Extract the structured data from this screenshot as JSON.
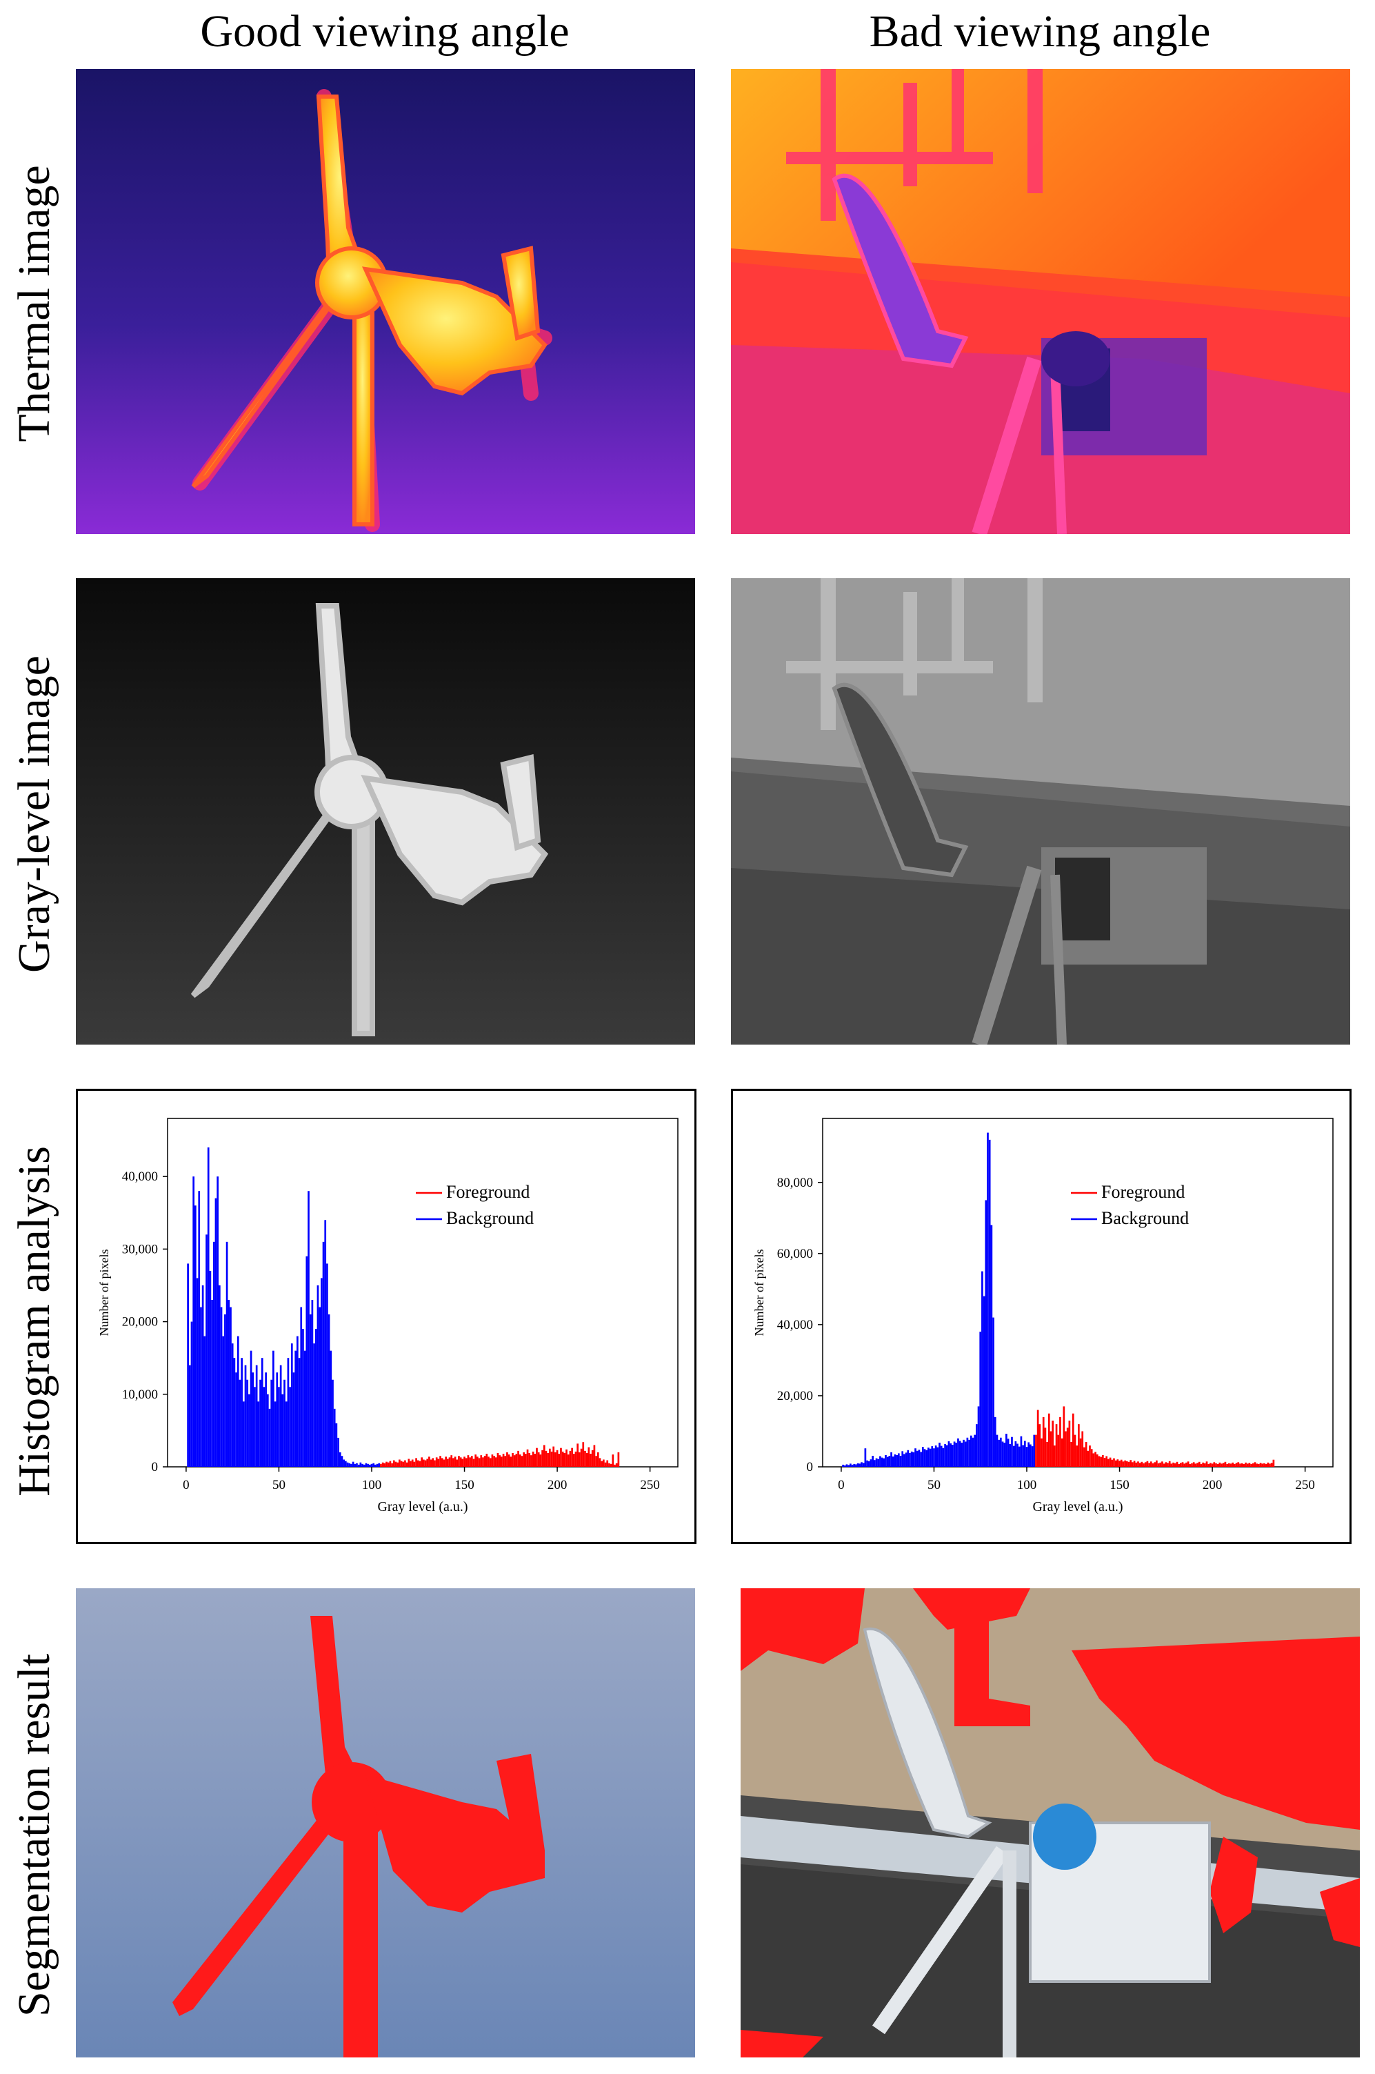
{
  "columns": {
    "good": "Good viewing angle",
    "bad": "Bad viewing angle"
  },
  "rows": {
    "thermal": "Thermal image",
    "gray": "Gray-level image",
    "histogram": "Histogram analysis",
    "segmentation": "Segmentation result"
  },
  "colors": {
    "foreground": "#ff0000",
    "background": "#0000ff",
    "thermal_bg": "#2a1a8a",
    "thermal_hot": "#ffd21a",
    "segment_red": "#ff1a1a",
    "sky": "#8aa0c4"
  },
  "chart_data": [
    {
      "type": "bar",
      "panel": "good",
      "xlabel": "Gray level (a.u.)",
      "ylabel": "Number of pixels",
      "xlim": [
        -10,
        265
      ],
      "ylim": [
        0,
        48000
      ],
      "xticks": [
        0,
        50,
        100,
        150,
        200,
        250
      ],
      "yticks": [
        0,
        10000,
        20000,
        30000,
        40000
      ],
      "ytick_labels": [
        "0",
        "10,000",
        "20,000",
        "30,000",
        "40,000"
      ],
      "legend": {
        "position": "top-right"
      },
      "series": [
        {
          "name": "Background",
          "color": "#0000ff",
          "x": [
            1,
            2,
            3,
            4,
            5,
            6,
            7,
            8,
            9,
            10,
            11,
            12,
            13,
            14,
            15,
            16,
            17,
            18,
            19,
            20,
            21,
            22,
            23,
            24,
            25,
            26,
            27,
            28,
            29,
            30,
            31,
            32,
            33,
            34,
            35,
            36,
            37,
            38,
            39,
            40,
            41,
            42,
            43,
            44,
            45,
            46,
            47,
            48,
            49,
            50,
            51,
            52,
            53,
            54,
            55,
            56,
            57,
            58,
            59,
            60,
            61,
            62,
            63,
            64,
            65,
            66,
            67,
            68,
            69,
            70,
            71,
            72,
            73,
            74,
            75,
            76,
            77,
            78,
            79,
            80,
            81,
            82,
            83,
            84,
            85,
            86,
            87,
            88,
            89,
            90,
            91,
            92,
            93,
            94,
            95,
            96,
            97,
            98,
            99,
            100,
            101,
            102,
            103,
            104
          ],
          "values": [
            28000,
            14000,
            20000,
            40000,
            36000,
            26000,
            38000,
            22000,
            25000,
            18000,
            32000,
            44000,
            27000,
            23000,
            31000,
            37000,
            40000,
            25000,
            22000,
            18000,
            21000,
            31000,
            23000,
            22000,
            17000,
            15000,
            13000,
            18000,
            12000,
            15000,
            9000,
            14000,
            12000,
            10000,
            16000,
            13000,
            11000,
            14000,
            9000,
            12000,
            15000,
            11000,
            13000,
            10000,
            8000,
            12000,
            16000,
            9000,
            13000,
            11000,
            14000,
            10000,
            12000,
            9000,
            15000,
            11000,
            17000,
            13000,
            16000,
            18000,
            15000,
            22000,
            19000,
            16000,
            29000,
            38000,
            21000,
            23000,
            17000,
            19000,
            25000,
            22000,
            26000,
            31000,
            34000,
            28000,
            21000,
            16000,
            12000,
            8000,
            6000,
            4000,
            2000,
            1500,
            1000,
            800,
            600,
            500,
            400,
            700,
            400,
            500,
            300,
            600,
            400,
            300,
            500,
            400,
            300,
            400,
            500,
            300,
            400,
            500
          ]
        },
        {
          "name": "Foreground",
          "color": "#ff0000",
          "x": [
            105,
            106,
            107,
            108,
            109,
            110,
            111,
            112,
            113,
            114,
            115,
            116,
            117,
            118,
            119,
            120,
            121,
            122,
            123,
            124,
            125,
            126,
            127,
            128,
            129,
            130,
            131,
            132,
            133,
            134,
            135,
            136,
            137,
            138,
            139,
            140,
            141,
            142,
            143,
            144,
            145,
            146,
            147,
            148,
            149,
            150,
            151,
            152,
            153,
            154,
            155,
            156,
            157,
            158,
            159,
            160,
            161,
            162,
            163,
            164,
            165,
            166,
            167,
            168,
            169,
            170,
            171,
            172,
            173,
            174,
            175,
            176,
            177,
            178,
            179,
            180,
            181,
            182,
            183,
            184,
            185,
            186,
            187,
            188,
            189,
            190,
            191,
            192,
            193,
            194,
            195,
            196,
            197,
            198,
            199,
            200,
            201,
            202,
            203,
            204,
            205,
            206,
            207,
            208,
            209,
            210,
            211,
            212,
            213,
            214,
            215,
            216,
            217,
            218,
            219,
            220,
            221,
            222,
            223,
            224,
            225,
            226,
            227,
            228,
            229,
            230,
            231,
            232,
            233
          ],
          "values": [
            400,
            600,
            500,
            700,
            600,
            800,
            500,
            900,
            700,
            600,
            1000,
            800,
            700,
            900,
            600,
            1100,
            800,
            1000,
            700,
            1200,
            900,
            800,
            1300,
            1000,
            900,
            1100,
            1400,
            1000,
            1200,
            900,
            1300,
            1100,
            1500,
            1200,
            1000,
            1400,
            1100,
            1300,
            1600,
            1200,
            1400,
            1000,
            1500,
            1300,
            1100,
            1400,
            1200,
            1600,
            1300,
            1500,
            1100,
            1700,
            1400,
            1200,
            1600,
            1300,
            1500,
            1800,
            1400,
            1200,
            1700,
            1500,
            1300,
            1900,
            1600,
            1400,
            1800,
            1500,
            2000,
            1700,
            1400,
            1900,
            1600,
            1800,
            2200,
            1700,
            1500,
            2000,
            1800,
            2400,
            1900,
            1600,
            2100,
            1800,
            2600,
            2000,
            1700,
            2300,
            3000,
            2200,
            1900,
            2500,
            2100,
            2800,
            2000,
            2300,
            1800,
            2600,
            2100,
            1900,
            2400,
            1700,
            2200,
            2600,
            1800,
            2100,
            3200,
            2000,
            2500,
            3400,
            2200,
            1900,
            2700,
            1800,
            2300,
            3000,
            1500,
            2000,
            1200,
            800,
            1000,
            600,
            900,
            500,
            400,
            1700,
            300,
            500,
            2000
          ]
        }
      ]
    },
    {
      "type": "bar",
      "panel": "bad",
      "xlabel": "Gray level (a.u.)",
      "ylabel": "Number of pixels",
      "xlim": [
        -10,
        265
      ],
      "ylim": [
        0,
        98000
      ],
      "xticks": [
        0,
        50,
        100,
        150,
        200,
        250
      ],
      "yticks": [
        0,
        20000,
        40000,
        60000,
        80000
      ],
      "ytick_labels": [
        "0",
        "20,000",
        "40,000",
        "60,000",
        "80,000"
      ],
      "legend": {
        "position": "top-right"
      },
      "series": [
        {
          "name": "Background",
          "color": "#0000ff",
          "x": [
            1,
            2,
            3,
            4,
            5,
            6,
            7,
            8,
            9,
            10,
            11,
            12,
            13,
            14,
            15,
            16,
            17,
            18,
            19,
            20,
            21,
            22,
            23,
            24,
            25,
            26,
            27,
            28,
            29,
            30,
            31,
            32,
            33,
            34,
            35,
            36,
            37,
            38,
            39,
            40,
            41,
            42,
            43,
            44,
            45,
            46,
            47,
            48,
            49,
            50,
            51,
            52,
            53,
            54,
            55,
            56,
            57,
            58,
            59,
            60,
            61,
            62,
            63,
            64,
            65,
            66,
            67,
            68,
            69,
            70,
            71,
            72,
            73,
            74,
            75,
            76,
            77,
            78,
            79,
            80,
            81,
            82,
            83,
            84,
            85,
            86,
            87,
            88,
            89,
            90,
            91,
            92,
            93,
            94,
            95,
            96,
            97,
            98,
            99,
            100,
            101,
            102,
            103,
            104
          ],
          "values": [
            600,
            400,
            700,
            500,
            900,
            600,
            800,
            700,
            1000,
            900,
            1300,
            1100,
            5200,
            1800,
            1600,
            2100,
            3100,
            1900,
            2400,
            2200,
            3000,
            2600,
            2400,
            3300,
            2800,
            3100,
            4100,
            2900,
            3500,
            3300,
            3800,
            3100,
            4400,
            3600,
            4000,
            4700,
            3900,
            4300,
            4100,
            5200,
            4500,
            4800,
            4200,
            5600,
            5000,
            4700,
            5400,
            5100,
            5800,
            5200,
            6000,
            5500,
            6800,
            5900,
            5300,
            6400,
            6100,
            7200,
            6600,
            6200,
            7100,
            6800,
            8000,
            7300,
            6800,
            7600,
            7100,
            8200,
            7600,
            8800,
            8200,
            9000,
            12000,
            17000,
            38000,
            55000,
            48000,
            75000,
            94000,
            92000,
            68000,
            42000,
            14000,
            9000,
            7600,
            8200,
            7100,
            6800,
            9300,
            7900,
            6400,
            8400,
            5900,
            7200,
            6500,
            5700,
            8600,
            6100,
            7300,
            5600,
            6900,
            6300,
            5800,
            9000
          ]
        },
        {
          "name": "Foreground",
          "color": "#ff0000",
          "x": [
            105,
            106,
            107,
            108,
            109,
            110,
            111,
            112,
            113,
            114,
            115,
            116,
            117,
            118,
            119,
            120,
            121,
            122,
            123,
            124,
            125,
            126,
            127,
            128,
            129,
            130,
            131,
            132,
            133,
            134,
            135,
            136,
            137,
            138,
            139,
            140,
            141,
            142,
            143,
            144,
            145,
            146,
            147,
            148,
            149,
            150,
            151,
            152,
            153,
            154,
            155,
            156,
            157,
            158,
            159,
            160,
            161,
            162,
            163,
            164,
            165,
            166,
            167,
            168,
            169,
            170,
            171,
            172,
            173,
            174,
            175,
            176,
            177,
            178,
            179,
            180,
            181,
            182,
            183,
            184,
            185,
            186,
            187,
            188,
            189,
            190,
            191,
            192,
            193,
            194,
            195,
            196,
            197,
            198,
            199,
            200,
            201,
            202,
            203,
            204,
            205,
            206,
            207,
            208,
            209,
            210,
            211,
            212,
            213,
            214,
            215,
            216,
            217,
            218,
            219,
            220,
            221,
            222,
            223,
            224,
            225,
            226,
            227,
            228,
            229,
            230,
            231,
            232,
            233
          ],
          "values": [
            9000,
            16000,
            12000,
            8000,
            14000,
            11000,
            7000,
            15000,
            10000,
            13000,
            6000,
            12000,
            9000,
            14000,
            8000,
            17000,
            10000,
            11000,
            13000,
            7000,
            15000,
            9000,
            6000,
            12000,
            8000,
            10000,
            5500,
            7000,
            4500,
            6000,
            5000,
            3800,
            4200,
            3500,
            3000,
            2800,
            3300,
            2500,
            3000,
            2200,
            2600,
            2000,
            2400,
            1800,
            2100,
            1700,
            2000,
            1500,
            1800,
            1600,
            1400,
            1900,
            1300,
            1700,
            1200,
            1500,
            1100,
            1400,
            1000,
            1300,
            1600,
            1100,
            1500,
            1000,
            1300,
            1800,
            1000,
            1200,
            1500,
            900,
            1300,
            1100,
            1600,
            900,
            1200,
            1000,
            1400,
            800,
            1100,
            1300,
            900,
            1200,
            1500,
            800,
            1000,
            1300,
            900,
            1100,
            1400,
            800,
            1200,
            1000,
            1500,
            800,
            1100,
            900,
            1300,
            1000,
            800,
            1200,
            900,
            1100,
            1400,
            800,
            1000,
            900,
            1200,
            800,
            1100,
            1300,
            900,
            1000,
            800,
            1200,
            900,
            1100,
            800,
            1000,
            1300,
            900,
            800,
            1100,
            900,
            1000,
            800,
            1200,
            900,
            1100,
            2000
          ]
        }
      ]
    }
  ]
}
